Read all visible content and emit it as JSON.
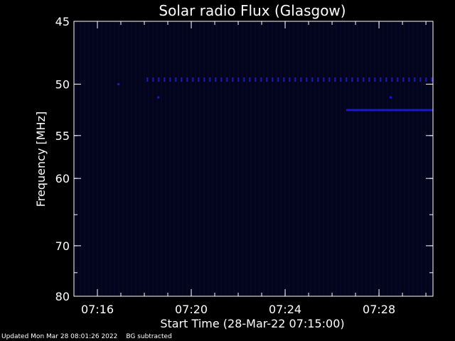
{
  "chart_data": {
    "type": "heatmap",
    "title": "Solar radio Flux (Glasgow)",
    "xlabel": "Start Time (28-Mar-22 07:15:00)",
    "ylabel": "Frequency [MHz]",
    "x_unit": "minutes after 07:15:00",
    "xlim": [
      0,
      15.3
    ],
    "ylim_reciprocal": [
      45,
      80
    ],
    "y_scale": "reciprocal (1/f), 45 MHz at top",
    "x_ticks": [
      {
        "value": 1,
        "label": "07:16"
      },
      {
        "value": 5,
        "label": "07:20"
      },
      {
        "value": 9,
        "label": "07:24"
      },
      {
        "value": 13,
        "label": "07:28"
      }
    ],
    "y_ticks": [
      {
        "value": 45,
        "label": "45"
      },
      {
        "value": 50,
        "label": "50"
      },
      {
        "value": 55,
        "label": "55"
      },
      {
        "value": 60,
        "label": "60"
      },
      {
        "value": 70,
        "label": "70"
      },
      {
        "value": 80,
        "label": "80"
      }
    ],
    "background_color": "#03031c",
    "signal_color": "#1a1acc",
    "features": [
      {
        "kind": "dotted-band",
        "freq": 49.6,
        "x_start": 3.1,
        "x_end": 15.3
      },
      {
        "kind": "line-band",
        "freq": 52.4,
        "x_start": 11.6,
        "x_end": 15.3
      },
      {
        "kind": "dot",
        "freq": 51.2,
        "x": 3.6
      },
      {
        "kind": "dot",
        "freq": 51.2,
        "x": 13.5
      },
      {
        "kind": "dot",
        "freq": 50.0,
        "x": 1.9
      }
    ]
  },
  "footer": {
    "updated": "Updated Mon Mar 28 08:01:26 2022",
    "note": "BG subtracted"
  }
}
